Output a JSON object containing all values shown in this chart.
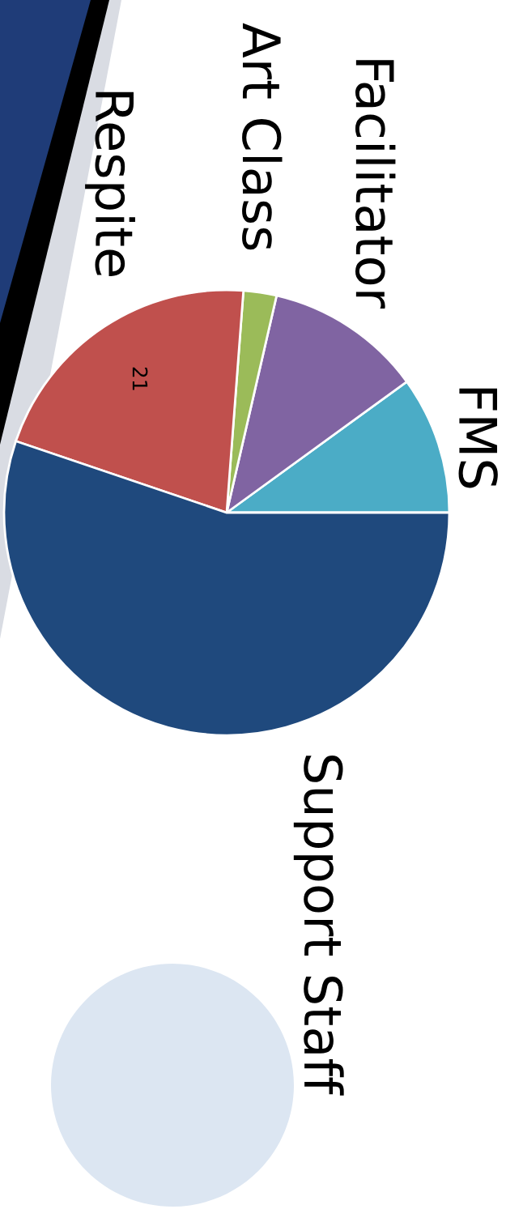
{
  "chart_data": {
    "type": "pie",
    "categories": [
      "FMS",
      "Facilitator",
      "Art Class",
      "Respite",
      "Support Staff"
    ],
    "values": [
      10,
      11.4,
      2.4,
      21,
      55.2
    ],
    "colors": [
      "#4bacc6",
      "#8064a2",
      "#9bbb59",
      "#c0504d",
      "#1f497d"
    ],
    "value_labels": [
      null,
      null,
      null,
      "21",
      null
    ]
  }
}
